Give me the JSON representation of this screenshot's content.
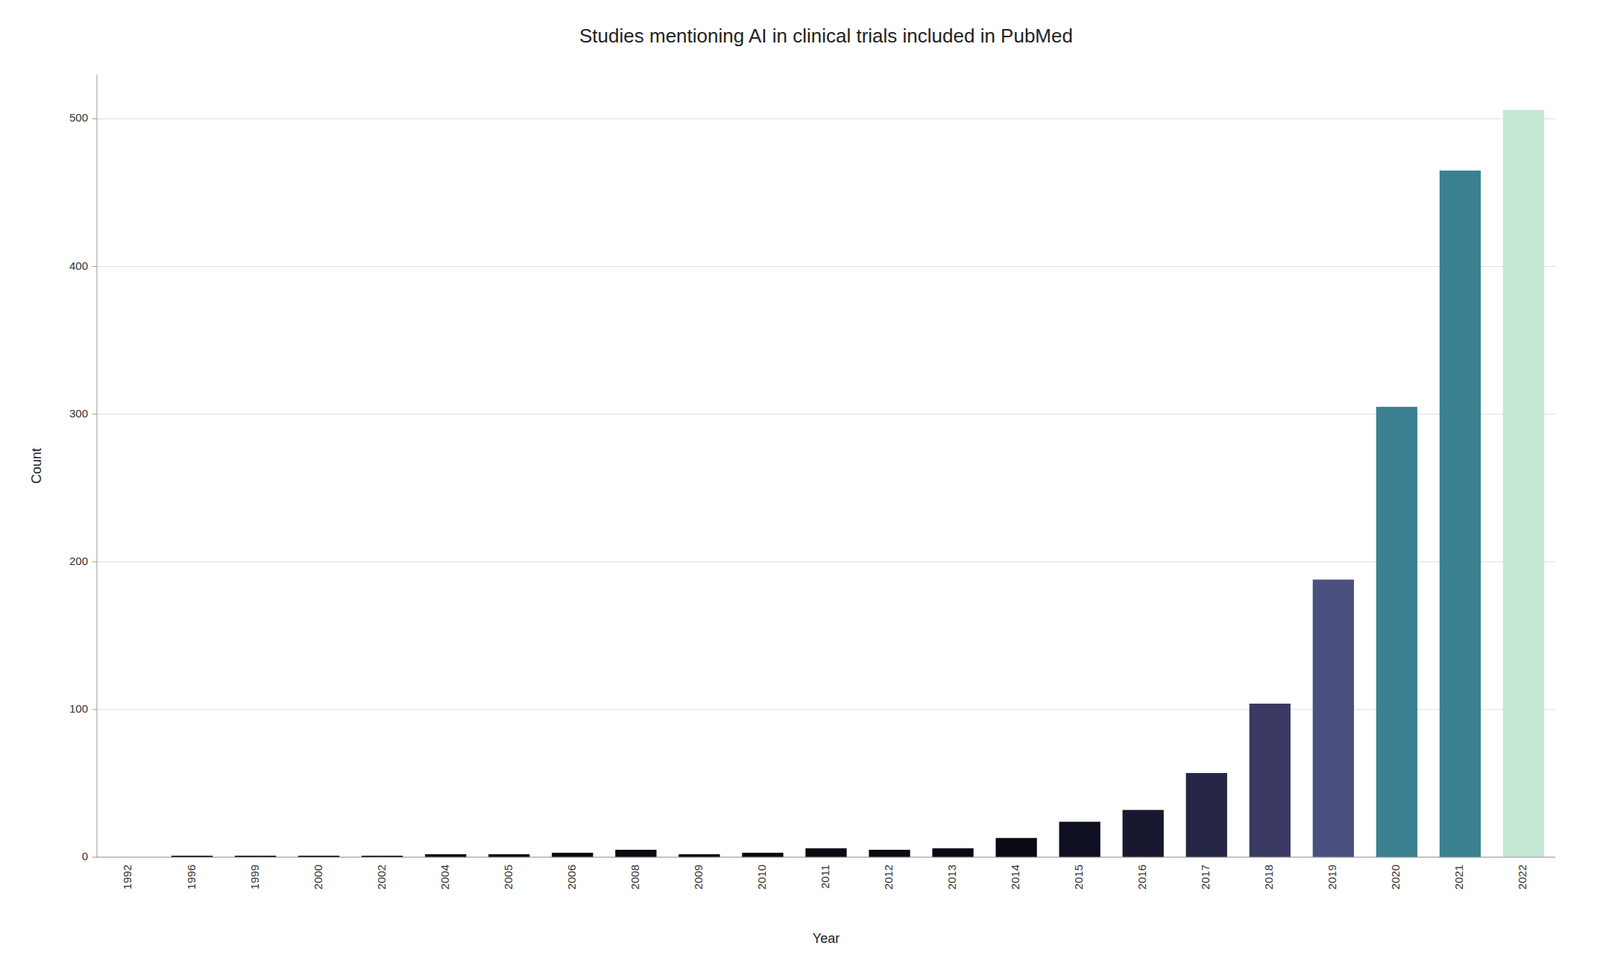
{
  "chart_data": {
    "type": "bar",
    "title": "Studies mentioning AI in clinical trials included in PubMed",
    "xlabel": "Year",
    "ylabel": "Count",
    "categories": [
      "1992",
      "1996",
      "1999",
      "2000",
      "2002",
      "2004",
      "2005",
      "2006",
      "2008",
      "2009",
      "2010",
      "2011",
      "2012",
      "2013",
      "2014",
      "2015",
      "2016",
      "2017",
      "2018",
      "2019",
      "2020",
      "2021",
      "2022"
    ],
    "values": [
      0,
      1,
      1,
      1,
      1,
      2,
      2,
      3,
      5,
      2,
      3,
      6,
      5,
      6,
      13,
      24,
      32,
      57,
      104,
      188,
      305,
      465,
      506
    ],
    "colors": [
      "#0a0a12",
      "#0a0a12",
      "#0a0a12",
      "#0a0a12",
      "#0a0a12",
      "#0a0a12",
      "#0a0a12",
      "#0a0a12",
      "#0a0a12",
      "#0a0a12",
      "#0a0a12",
      "#0a0a12",
      "#0a0a12",
      "#0a0a12",
      "#0a0a12",
      "#0f0f22",
      "#181830",
      "#252545",
      "#3a3a62",
      "#4a5080",
      "#3a8090",
      "#3a8090",
      "#c5e8d5"
    ],
    "ylim": [
      0,
      530
    ],
    "yticks": [
      0,
      100,
      200,
      300,
      400,
      500
    ],
    "grid": true
  }
}
